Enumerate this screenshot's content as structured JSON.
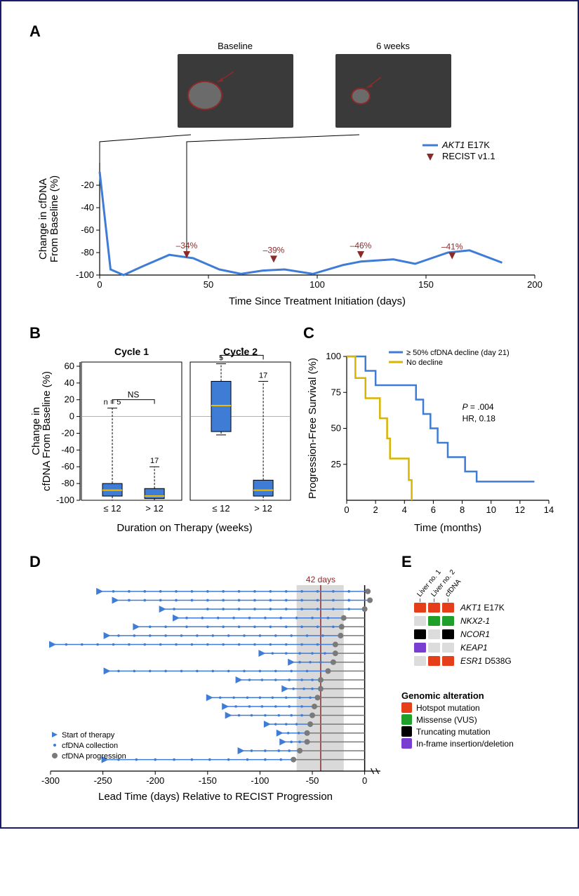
{
  "figure": {
    "A": {
      "label": "A",
      "scan_labels": [
        "Baseline",
        "6 weeks"
      ],
      "legend_line_text": "AKT1 E17K",
      "legend_marker_text": "RECIST v1.1",
      "x_label": "Time Since Treatment Initiation (days)",
      "y_label": "Change in cfDNA\nFrom Baseline (%)",
      "xlim": [
        0,
        200
      ],
      "xtick_step": 50,
      "ylim": [
        -100,
        0
      ],
      "yticks": [
        -20,
        -40,
        -60,
        -80,
        -100
      ],
      "line_color": "#3e7cd6",
      "line_points": [
        {
          "x": 0,
          "y": -8
        },
        {
          "x": 5,
          "y": -95
        },
        {
          "x": 11,
          "y": -100
        },
        {
          "x": 20,
          "y": -92
        },
        {
          "x": 32,
          "y": -82
        },
        {
          "x": 43,
          "y": -85
        },
        {
          "x": 55,
          "y": -95
        },
        {
          "x": 65,
          "y": -99
        },
        {
          "x": 75,
          "y": -96
        },
        {
          "x": 85,
          "y": -95
        },
        {
          "x": 98,
          "y": -99
        },
        {
          "x": 112,
          "y": -91
        },
        {
          "x": 120,
          "y": -88
        },
        {
          "x": 135,
          "y": -86
        },
        {
          "x": 145,
          "y": -90
        },
        {
          "x": 160,
          "y": -80
        },
        {
          "x": 170,
          "y": -78
        },
        {
          "x": 185,
          "y": -89
        }
      ],
      "recist_points": [
        {
          "x": 40,
          "y": -85,
          "label": "–34%"
        },
        {
          "x": 80,
          "y": -89,
          "label": "–39%"
        },
        {
          "x": 120,
          "y": -85,
          "label": "–46%"
        },
        {
          "x": 162,
          "y": -86,
          "label": "–41%"
        }
      ],
      "marker_color": "#8c2a2a"
    },
    "B": {
      "label": "B",
      "y_label": "Change in\ncfDNA From Baseline (%)",
      "x_label": "Duration on Therapy (weeks)",
      "ylim": [
        -100,
        65
      ],
      "yticks": [
        -100,
        -80,
        -60,
        -40,
        -20,
        0,
        20,
        40,
        60
      ],
      "cycles": [
        {
          "title": "Cycle 1",
          "bracket_label": "NS",
          "boxes": [
            {
              "xlabel": "≤ 12",
              "n": "n = 5",
              "q1": -95,
              "q3": -80,
              "med": -88,
              "lo": -100,
              "hi": 10
            },
            {
              "xlabel": "> 12",
              "n": "17",
              "q1": -98,
              "q3": -86,
              "med": -95,
              "lo": -100,
              "hi": -60
            }
          ]
        },
        {
          "title": "Cycle 2",
          "bracket_label": "*",
          "boxes": [
            {
              "xlabel": "≤ 12",
              "n": "5",
              "q1": -18,
              "q3": 42,
              "med": 13,
              "lo": -22,
              "hi": 63
            },
            {
              "xlabel": "> 12",
              "n": "17",
              "q1": -95,
              "q3": -76,
              "med": -88,
              "lo": -100,
              "hi": 42
            }
          ]
        }
      ],
      "box_color": "#3e7cd6",
      "median_color": "#f0c000"
    },
    "C": {
      "label": "C",
      "y_label": "Progression-Free Survival (%)",
      "x_label": "Time (months)",
      "xlim": [
        0,
        14
      ],
      "xticks": [
        0,
        2,
        4,
        6,
        8,
        10,
        12,
        14
      ],
      "ylim": [
        0,
        100
      ],
      "yticks": [
        25,
        50,
        75,
        100
      ],
      "stat_text_p": "P = .004",
      "stat_text_hr": "HR, 0.18",
      "stat_text_p_style": "italic",
      "curves": [
        {
          "label": "≥ 50% cfDNA decline (day 21)",
          "color": "#3e7cd6",
          "steps": [
            [
              0,
              100
            ],
            [
              1.3,
              100
            ],
            [
              1.3,
              90
            ],
            [
              2.0,
              90
            ],
            [
              2.0,
              80
            ],
            [
              3.0,
              80
            ],
            [
              4.8,
              80
            ],
            [
              4.8,
              70
            ],
            [
              5.3,
              70
            ],
            [
              5.3,
              60
            ],
            [
              5.8,
              60
            ],
            [
              5.8,
              50
            ],
            [
              6.3,
              50
            ],
            [
              6.3,
              40
            ],
            [
              7.0,
              40
            ],
            [
              7.0,
              30
            ],
            [
              8.2,
              30
            ],
            [
              8.2,
              20
            ],
            [
              9.0,
              20
            ],
            [
              9.0,
              13
            ],
            [
              13.0,
              13
            ]
          ]
        },
        {
          "label": "No decline",
          "color": "#d9b400",
          "steps": [
            [
              0,
              100
            ],
            [
              0.6,
              100
            ],
            [
              0.6,
              85
            ],
            [
              1.3,
              85
            ],
            [
              1.3,
              71
            ],
            [
              2.3,
              71
            ],
            [
              2.3,
              57
            ],
            [
              2.8,
              57
            ],
            [
              2.8,
              43
            ],
            [
              3.0,
              43
            ],
            [
              3.0,
              29
            ],
            [
              4.3,
              29
            ],
            [
              4.3,
              14
            ],
            [
              4.5,
              14
            ],
            [
              4.5,
              0
            ]
          ]
        }
      ]
    },
    "D": {
      "label": "D",
      "x_label": "Lead Time (days) Relative to RECIST Progression",
      "xlim": [
        -300,
        15
      ],
      "xticks": [
        -300,
        -250,
        -200,
        -150,
        -100,
        -50,
        0
      ],
      "band": {
        "from": -65,
        "to": -20,
        "color": "#d9d9d9"
      },
      "median_line": {
        "at": -42,
        "color": "#8c2a2a",
        "label": "42 days"
      },
      "line_blue": "#3e7cd6",
      "line_grey": "#7a7a7a",
      "legend": [
        {
          "marker": "triangle",
          "label": "Start of therapy",
          "color": "#3e7cd6"
        },
        {
          "marker": "dot",
          "label": "cfDNA collection",
          "color": "#3e7cd6"
        },
        {
          "marker": "bigdot",
          "label": "cfDNA progression",
          "color": "#7a7a7a"
        }
      ],
      "patients": [
        {
          "start": -255,
          "prog": 3,
          "coll": [
            -240,
            -225,
            -210,
            -195,
            -180,
            -165,
            -150,
            -135,
            -120,
            -105,
            -90,
            -75,
            -60,
            -45,
            -30,
            -15,
            3
          ]
        },
        {
          "start": -240,
          "prog": 5,
          "coll": [
            -225,
            -210,
            -195,
            -180,
            -165,
            -150,
            -135,
            -120,
            -105,
            -90,
            -75,
            -60,
            -45,
            -30,
            -15,
            5
          ]
        },
        {
          "start": -195,
          "prog": 0,
          "coll": [
            -182,
            -150,
            -135,
            -120,
            -105,
            -90,
            -75,
            -60,
            -45,
            -30,
            -15,
            0
          ]
        },
        {
          "start": -182,
          "prog": -20,
          "coll": [
            -170,
            -155,
            -140,
            -125,
            -110,
            -95,
            -80,
            -65,
            -50,
            -35,
            -20
          ]
        },
        {
          "start": -220,
          "prog": -22,
          "coll": [
            -205,
            -190,
            -170,
            -150,
            -135,
            -120,
            -105,
            -90,
            -75,
            -60,
            -45,
            -30,
            -22
          ]
        },
        {
          "start": -248,
          "prog": -23,
          "coll": [
            -235,
            -220,
            -205,
            -190,
            -175,
            -160,
            -145,
            -130,
            -115,
            -100,
            -85,
            -70,
            -55,
            -40,
            -23
          ]
        },
        {
          "start": -300,
          "prog": -28,
          "coll": [
            -285,
            -270,
            -255,
            -240,
            -225,
            -210,
            -195,
            -180,
            -165,
            -150,
            -135,
            -120,
            -105,
            -90,
            -75,
            -60,
            -45,
            -28
          ]
        },
        {
          "start": -100,
          "prog": -28,
          "coll": [
            -88,
            -75,
            -62,
            -50,
            -38,
            -28
          ]
        },
        {
          "start": -72,
          "prog": -30,
          "coll": [
            -62,
            -52,
            -42,
            -30
          ]
        },
        {
          "start": -248,
          "prog": -35,
          "coll": [
            -235,
            -220,
            -205,
            -190,
            -175,
            -160,
            -145,
            -130,
            -115,
            -100,
            -85,
            -70,
            -55,
            -35
          ]
        },
        {
          "start": -122,
          "prog": -42,
          "coll": [
            -110,
            -98,
            -85,
            -72,
            -60,
            -50,
            -42
          ]
        },
        {
          "start": -78,
          "prog": -42,
          "coll": [
            -68,
            -58,
            -50,
            -42
          ]
        },
        {
          "start": -150,
          "prog": -45,
          "coll": [
            -138,
            -125,
            -112,
            -100,
            -88,
            -75,
            -62,
            -52,
            -45
          ]
        },
        {
          "start": -135,
          "prog": -48,
          "coll": [
            -123,
            -110,
            -98,
            -85,
            -72,
            -60,
            -48
          ]
        },
        {
          "start": -132,
          "prog": -50,
          "coll": [
            -120,
            -108,
            -95,
            -82,
            -70,
            -60,
            -50
          ]
        },
        {
          "start": -95,
          "prog": -52,
          "coll": [
            -85,
            -75,
            -65,
            -52
          ]
        },
        {
          "start": -83,
          "prog": -55,
          "coll": [
            -73,
            -63,
            -55
          ]
        },
        {
          "start": -80,
          "prog": -55,
          "coll": [
            -70,
            -62,
            -55
          ]
        },
        {
          "start": -120,
          "prog": -62,
          "coll": [
            -108,
            -95,
            -82,
            -72,
            -62
          ]
        },
        {
          "start": -250,
          "prog": -68,
          "coll": [
            -235,
            -218,
            -200,
            -182,
            -165,
            -148,
            -130,
            -112,
            -95,
            -80,
            -68
          ]
        }
      ]
    },
    "E": {
      "label": "E",
      "columns": [
        "Liver no. 1",
        "Liver no. 2",
        "cfDNA"
      ],
      "genes": [
        {
          "name": "AKT1 E17K",
          "italic_part": "AKT1",
          "cells": [
            "hotspot",
            "hotspot",
            "hotspot"
          ]
        },
        {
          "name": "NKX2-1",
          "italic_part": "NKX2-1",
          "cells": [
            "none",
            "missense",
            "missense"
          ]
        },
        {
          "name": "NCOR1",
          "italic_part": "NCOR1",
          "cells": [
            "trunc",
            "none",
            "trunc"
          ]
        },
        {
          "name": "KEAP1",
          "italic_part": "KEAP1",
          "cells": [
            "inframe",
            "none",
            "none"
          ]
        },
        {
          "name": "ESR1 D538G",
          "italic_part": "ESR1",
          "cells": [
            "none",
            "hotspot",
            "hotspot"
          ]
        }
      ],
      "legend_title": "Genomic alteration",
      "legend": [
        {
          "key": "hotspot",
          "label": "Hotspot mutation",
          "color": "#e53e1a"
        },
        {
          "key": "missense",
          "label": "Missense (VUS)",
          "color": "#1ea02a"
        },
        {
          "key": "trunc",
          "label": "Truncating mutation",
          "color": "#000000"
        },
        {
          "key": "inframe",
          "label": "In-frame insertion/deletion",
          "color": "#7a3dd1"
        }
      ],
      "none_color": "#dcdcdc"
    }
  }
}
